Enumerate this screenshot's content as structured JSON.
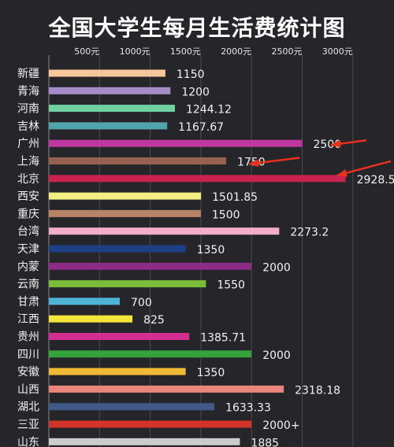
{
  "chart_data": {
    "type": "bar",
    "orientation": "horizontal",
    "title": "全国大学生每月生活费统计图",
    "xlabel": "",
    "ylabel": "",
    "xlim": [
      0,
      3000
    ],
    "x_ticks": [
      {
        "value": 500,
        "label": "500元"
      },
      {
        "value": 1000,
        "label": "1000元"
      },
      {
        "value": 1500,
        "label": "1500元"
      },
      {
        "value": 2000,
        "label": "2000元"
      },
      {
        "value": 2500,
        "label": "2500元"
      },
      {
        "value": 3000,
        "label": "3000元"
      }
    ],
    "grid": true,
    "legend": "none",
    "bars": [
      {
        "category": "新疆",
        "value": 1150,
        "label": "1150",
        "color": "#f7c79b"
      },
      {
        "category": "青海",
        "value": 1200,
        "label": "1200",
        "color": "#a58cc9"
      },
      {
        "category": "河南",
        "value": 1244.12,
        "label": "1244.12",
        "color": "#6fd1a2"
      },
      {
        "category": "吉林",
        "value": 1167.67,
        "label": "1167.67",
        "color": "#4fa5ab"
      },
      {
        "category": "广州",
        "value": 2500,
        "label": "2500",
        "color": "#c0389f"
      },
      {
        "category": "上海",
        "value": 1750,
        "label": "1750",
        "color": "#94624e"
      },
      {
        "category": "北京",
        "value": 2928.5,
        "label": "2928.5",
        "color": "#c8224d"
      },
      {
        "category": "西安",
        "value": 1501.85,
        "label": "1501.85",
        "color": "#f2ee82"
      },
      {
        "category": "重庆",
        "value": 1500,
        "label": "1500",
        "color": "#b78468"
      },
      {
        "category": "台湾",
        "value": 2273.2,
        "label": "2273.2",
        "color": "#f2aec6"
      },
      {
        "category": "天津",
        "value": 1350,
        "label": "1350",
        "color": "#1d3f86"
      },
      {
        "category": "内蒙",
        "value": 2000,
        "label": "2000",
        "color": "#8c2c86"
      },
      {
        "category": "云南",
        "value": 1550,
        "label": "1550",
        "color": "#7bbd3a"
      },
      {
        "category": "甘肃",
        "value": 700,
        "label": "700",
        "color": "#4eb3d6"
      },
      {
        "category": "江西",
        "value": 825,
        "label": "825",
        "color": "#f4e43c"
      },
      {
        "category": "贵州",
        "value": 1385.71,
        "label": "1385.71",
        "color": "#d42e92"
      },
      {
        "category": "四川",
        "value": 2000,
        "label": "2000",
        "color": "#34a33c"
      },
      {
        "category": "安徽",
        "value": 1350,
        "label": "1350",
        "color": "#f0b936"
      },
      {
        "category": "山西",
        "value": 2318.18,
        "label": "2318.18",
        "color": "#e9857b"
      },
      {
        "category": "湖北",
        "value": 1633.33,
        "label": "1633.33",
        "color": "#3f5a86"
      },
      {
        "category": "三亚",
        "value": 2000,
        "label": "2000+",
        "color": "#d2342a"
      },
      {
        "category": "山东",
        "value": 1885,
        "label": "1885",
        "color": "#cccccc"
      }
    ],
    "annotations": [
      {
        "type": "arrow",
        "target": "广州",
        "color": "#e8321e"
      },
      {
        "type": "arrow",
        "target": "上海",
        "color": "#e8321e"
      },
      {
        "type": "arrow",
        "target": "北京",
        "color": "#e8321e"
      }
    ]
  }
}
